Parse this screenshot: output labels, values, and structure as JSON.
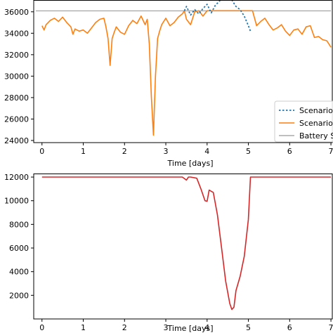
{
  "chart_data": [
    {
      "type": "line",
      "xlabel": "Time [days]",
      "ylabel": "",
      "xlim": [
        -0.2,
        7.05
      ],
      "ylim": [
        23800,
        37100
      ],
      "x_ticks": [
        0,
        1,
        2,
        3,
        4,
        5,
        6,
        7
      ],
      "x_tick_labels": [
        "0",
        "1",
        "2",
        "3",
        "4",
        "5",
        "6",
        "7"
      ],
      "y_ticks": [
        24000,
        26000,
        28000,
        30000,
        32000,
        34000,
        36000
      ],
      "y_tick_labels": [
        "24000",
        "26000",
        "28000",
        "30000",
        "32000",
        "34000",
        "36000"
      ],
      "grid": false,
      "legend_position": "lower-right",
      "series": [
        {
          "name": "Scenario",
          "style": "dotted",
          "color": "#1f77b4",
          "x": [
            3.45,
            3.5,
            3.6,
            3.7,
            3.8,
            3.9,
            4.0,
            4.1,
            4.2,
            4.3,
            4.4,
            4.5,
            4.6,
            4.7,
            4.8,
            4.9,
            5.0,
            5.05
          ],
          "y": [
            36100,
            36500,
            35700,
            36200,
            35800,
            36300,
            36700,
            35900,
            36600,
            37000,
            37400,
            37600,
            37100,
            36500,
            36200,
            35600,
            34700,
            34200
          ]
        },
        {
          "name": "Scenario",
          "style": "solid",
          "color": "#ff7f0e",
          "x": [
            0.0,
            0.05,
            0.1,
            0.15,
            0.2,
            0.3,
            0.4,
            0.5,
            0.6,
            0.7,
            0.75,
            0.8,
            0.9,
            1.0,
            1.1,
            1.2,
            1.3,
            1.4,
            1.5,
            1.55,
            1.6,
            1.65,
            1.7,
            1.75,
            1.8,
            1.9,
            2.0,
            2.1,
            2.2,
            2.3,
            2.4,
            2.5,
            2.55,
            2.6,
            2.65,
            2.7,
            2.75,
            2.8,
            2.85,
            2.9,
            3.0,
            3.1,
            3.2,
            3.3,
            3.4,
            3.45,
            3.5,
            3.6,
            3.7,
            3.8,
            3.9,
            4.0,
            4.3,
            4.6,
            5.0,
            5.1,
            5.2,
            5.3,
            5.4,
            5.5,
            5.6,
            5.7,
            5.8,
            5.9,
            6.0,
            6.1,
            6.2,
            6.3,
            6.4,
            6.5,
            6.6,
            6.7,
            6.8,
            6.9,
            7.0
          ],
          "y": [
            34700,
            34300,
            34800,
            35000,
            35200,
            35400,
            35100,
            35500,
            35000,
            34600,
            33900,
            34400,
            34200,
            34300,
            34000,
            34500,
            35000,
            35300,
            35400,
            34600,
            33500,
            31000,
            33500,
            34100,
            34600,
            34100,
            33900,
            34700,
            35200,
            34900,
            35600,
            34800,
            35300,
            33000,
            28000,
            24500,
            30000,
            33500,
            34200,
            34800,
            35400,
            34700,
            35000,
            35500,
            35800,
            36100,
            35300,
            34800,
            36000,
            36100,
            35600,
            36100,
            36100,
            36100,
            36100,
            36100,
            34700,
            35100,
            35400,
            34800,
            34300,
            34500,
            34800,
            34200,
            33800,
            34300,
            34400,
            33900,
            34600,
            34700,
            33600,
            33700,
            33400,
            33300,
            32700
          ]
        },
        {
          "name": "Battery S",
          "style": "thin-solid",
          "color": "#555555",
          "x": [
            -0.15,
            7.0
          ],
          "y": [
            36100,
            36100
          ]
        }
      ],
      "legend": [
        "Scenario",
        "Scenario",
        "Battery S"
      ]
    },
    {
      "type": "line",
      "xlabel": "Time [days]",
      "ylabel": "",
      "xlim": [
        -0.2,
        7.05
      ],
      "ylim": [
        0,
        12300
      ],
      "x_ticks": [
        0,
        1,
        2,
        3,
        4,
        5,
        6,
        7
      ],
      "x_tick_labels": [
        "0",
        "1",
        "2",
        "3",
        "4",
        "5",
        "6",
        "7"
      ],
      "y_ticks": [
        2000,
        4000,
        6000,
        8000,
        10000,
        12000
      ],
      "y_tick_labels": [
        "2000",
        "4000",
        "6000",
        "8000",
        "10000",
        "12000"
      ],
      "grid": false,
      "series": [
        {
          "name": "",
          "style": "solid",
          "color": "#d62728",
          "x": [
            0.0,
            3.4,
            3.5,
            3.55,
            3.6,
            3.75,
            3.85,
            3.95,
            4.0,
            4.05,
            4.15,
            4.25,
            4.35,
            4.45,
            4.55,
            4.6,
            4.65,
            4.7,
            4.8,
            4.9,
            5.0,
            5.05,
            5.1,
            7.0
          ],
          "y": [
            12000,
            12000,
            11750,
            12000,
            12000,
            11900,
            11000,
            10000,
            9950,
            10900,
            10700,
            8800,
            6000,
            3200,
            1300,
            800,
            1000,
            2400,
            3600,
            5300,
            8400,
            12000,
            12000,
            12000
          ]
        }
      ]
    }
  ]
}
